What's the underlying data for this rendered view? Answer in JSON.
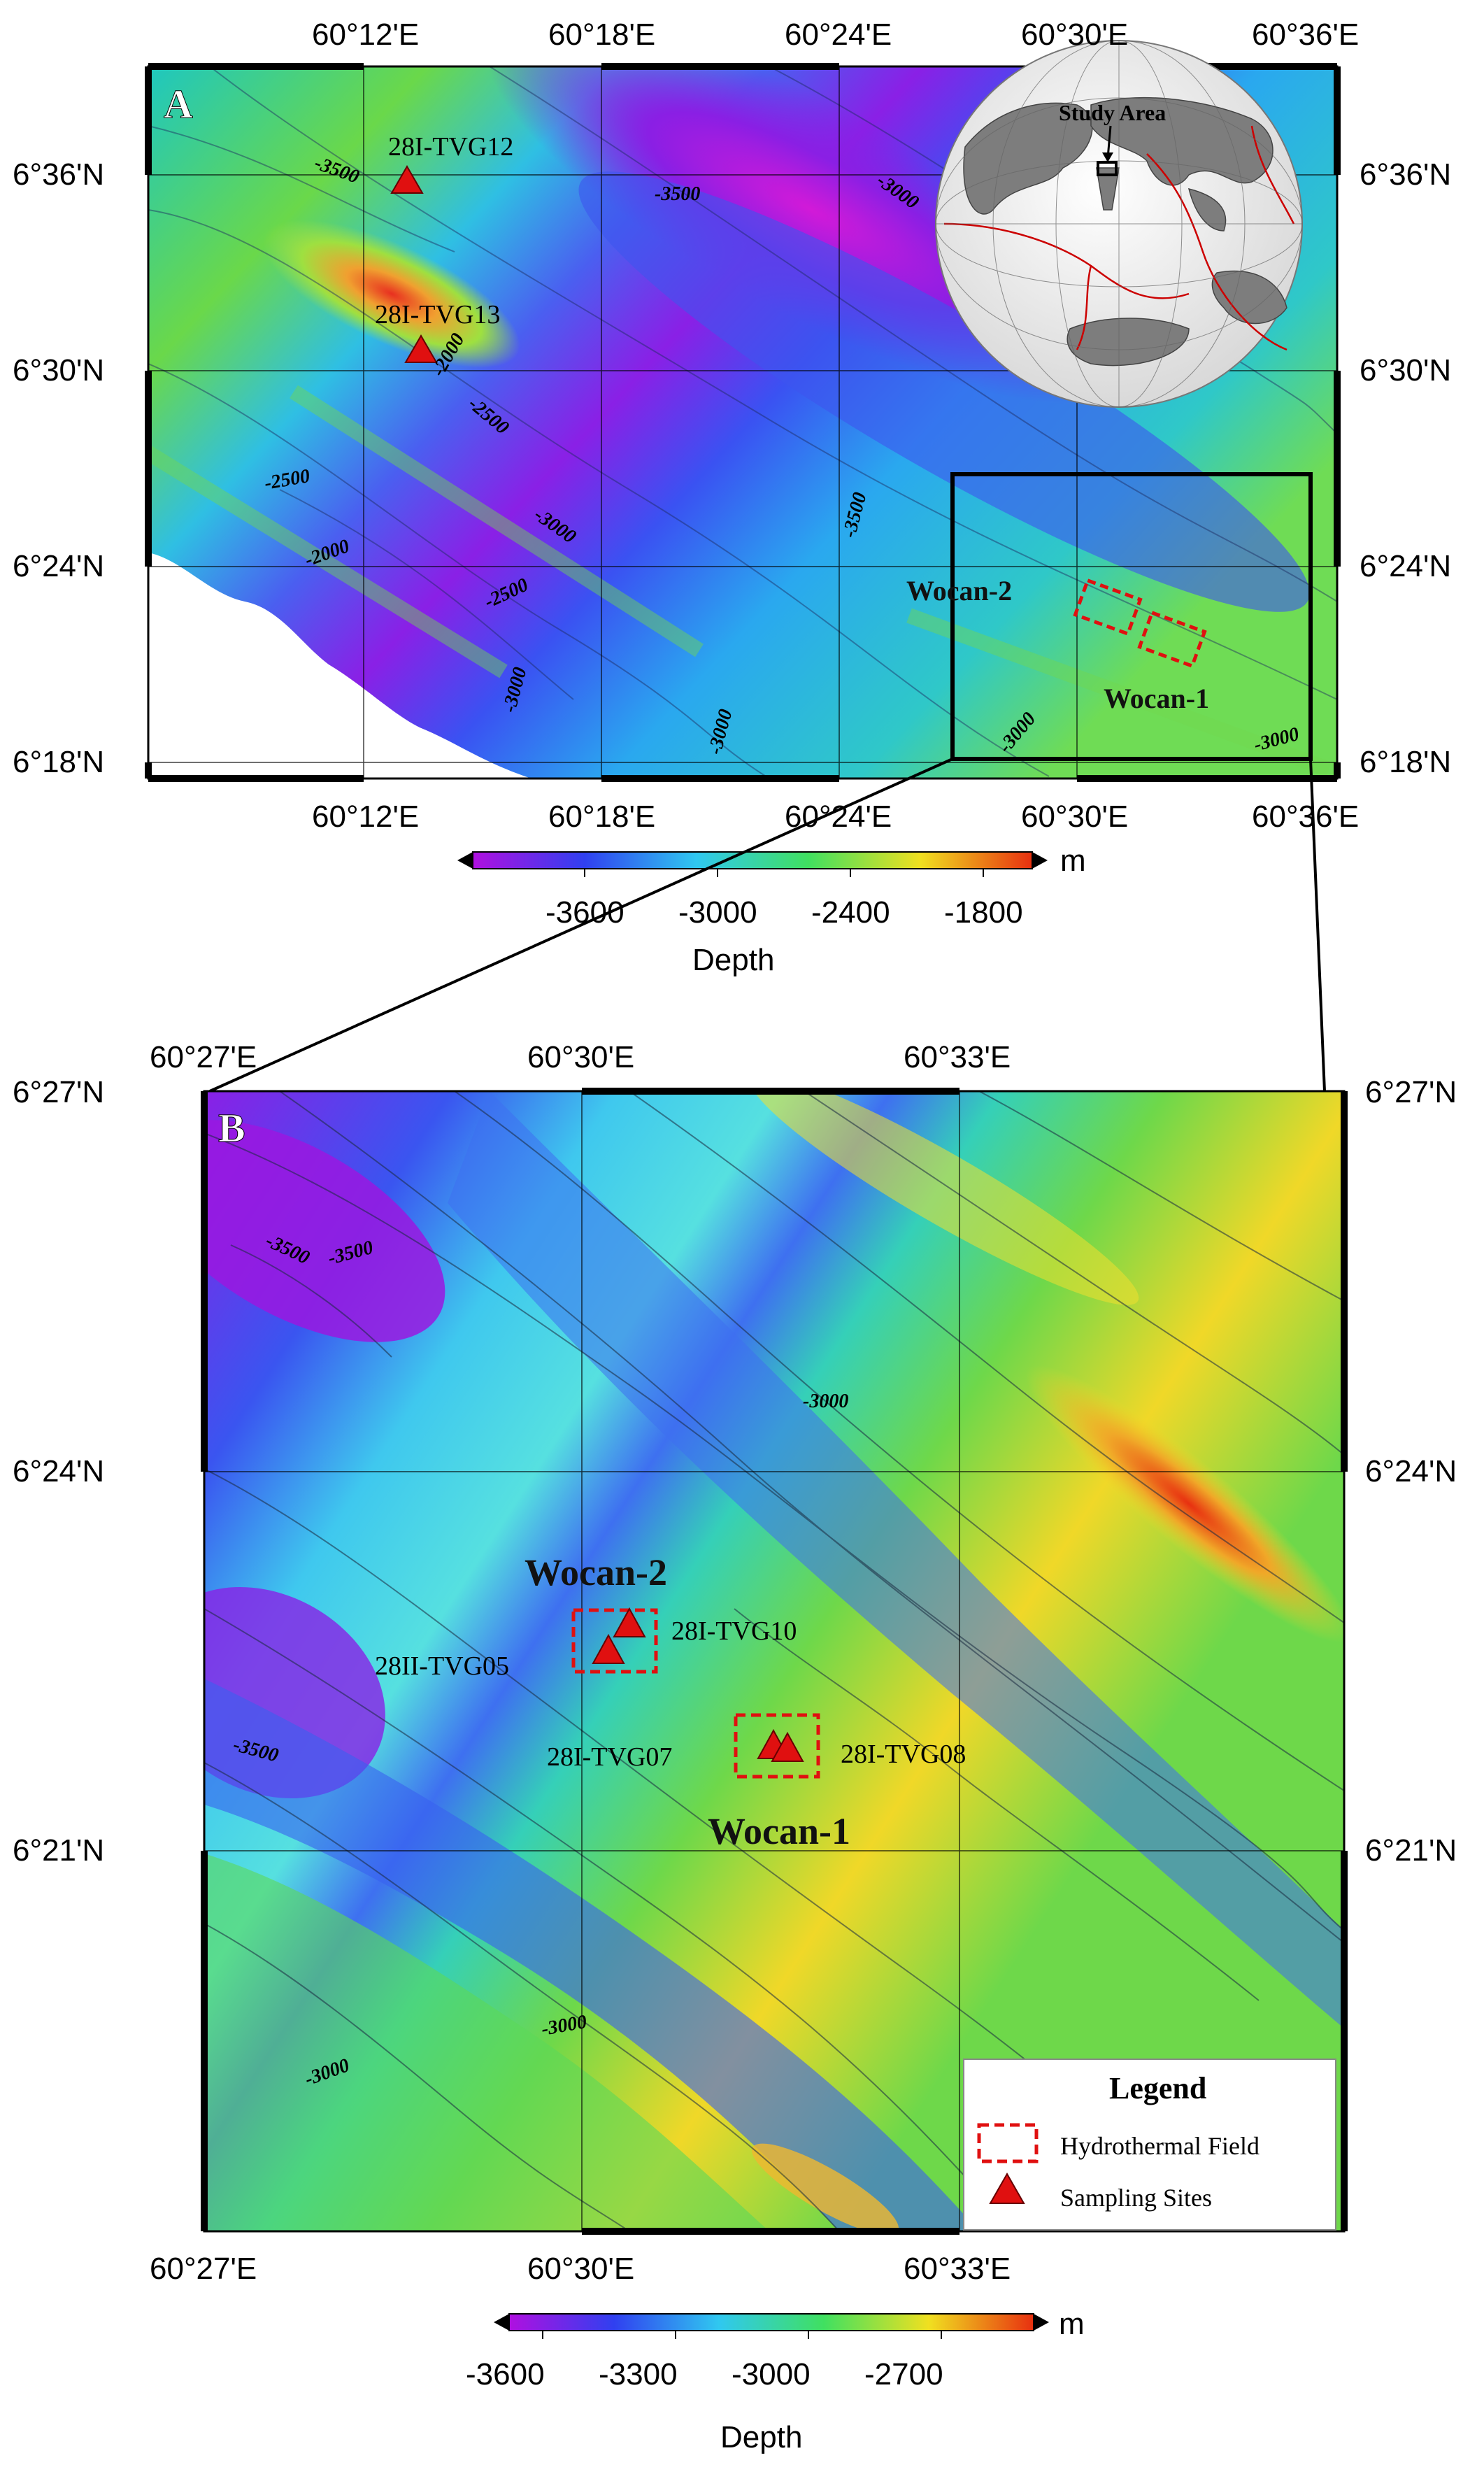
{
  "panel_a": {
    "letter": "A",
    "lon_labels": [
      "60°12'E",
      "60°18'E",
      "60°24'E",
      "60°30'E",
      "60°36'E"
    ],
    "lat_labels": [
      "6°36'N",
      "6°30'N",
      "6°24'N",
      "6°18'N"
    ],
    "sites": [
      "28I-TVG12",
      "28I-TVG13"
    ],
    "contours": [
      "-3500",
      "-3500",
      "-3000",
      "-2000",
      "-2500",
      "-2500",
      "-2000",
      "-3000",
      "-2500",
      "-3500",
      "-3000",
      "-3000",
      "-3000",
      "-3000"
    ],
    "fields": [
      "Wocan-2",
      "Wocan-1"
    ],
    "inset_label": "Study Area",
    "colorbar": {
      "ticks": [
        "-3600",
        "-3000",
        "-2400",
        "-1800"
      ],
      "unit": "m",
      "title": "Depth"
    }
  },
  "panel_b": {
    "letter": "B",
    "lon_labels": [
      "60°27'E",
      "60°30'E",
      "60°33'E"
    ],
    "lat_labels": [
      "6°27'N",
      "6°24'N",
      "6°21'N"
    ],
    "sites": [
      "28I-TVG10",
      "28II-TVG05",
      "28I-TVG07",
      "28I-TVG08"
    ],
    "contours": [
      "-3500",
      "-3500",
      "-3000",
      "-3500",
      "-3000",
      "-3000"
    ],
    "fields": [
      "Wocan-2",
      "Wocan-1"
    ],
    "legend": {
      "title": "Legend",
      "items": [
        "Hydrothermal Field",
        "Sampling Sites"
      ]
    },
    "colorbar": {
      "ticks": [
        "-3600",
        "-3300",
        "-3000",
        "-2700"
      ],
      "unit": "m",
      "title": "Depth"
    }
  },
  "colors": {
    "deep": "#9a18e0",
    "mid": "#45c8e8",
    "shallow": "#e85a20",
    "marker": "#e01010"
  }
}
